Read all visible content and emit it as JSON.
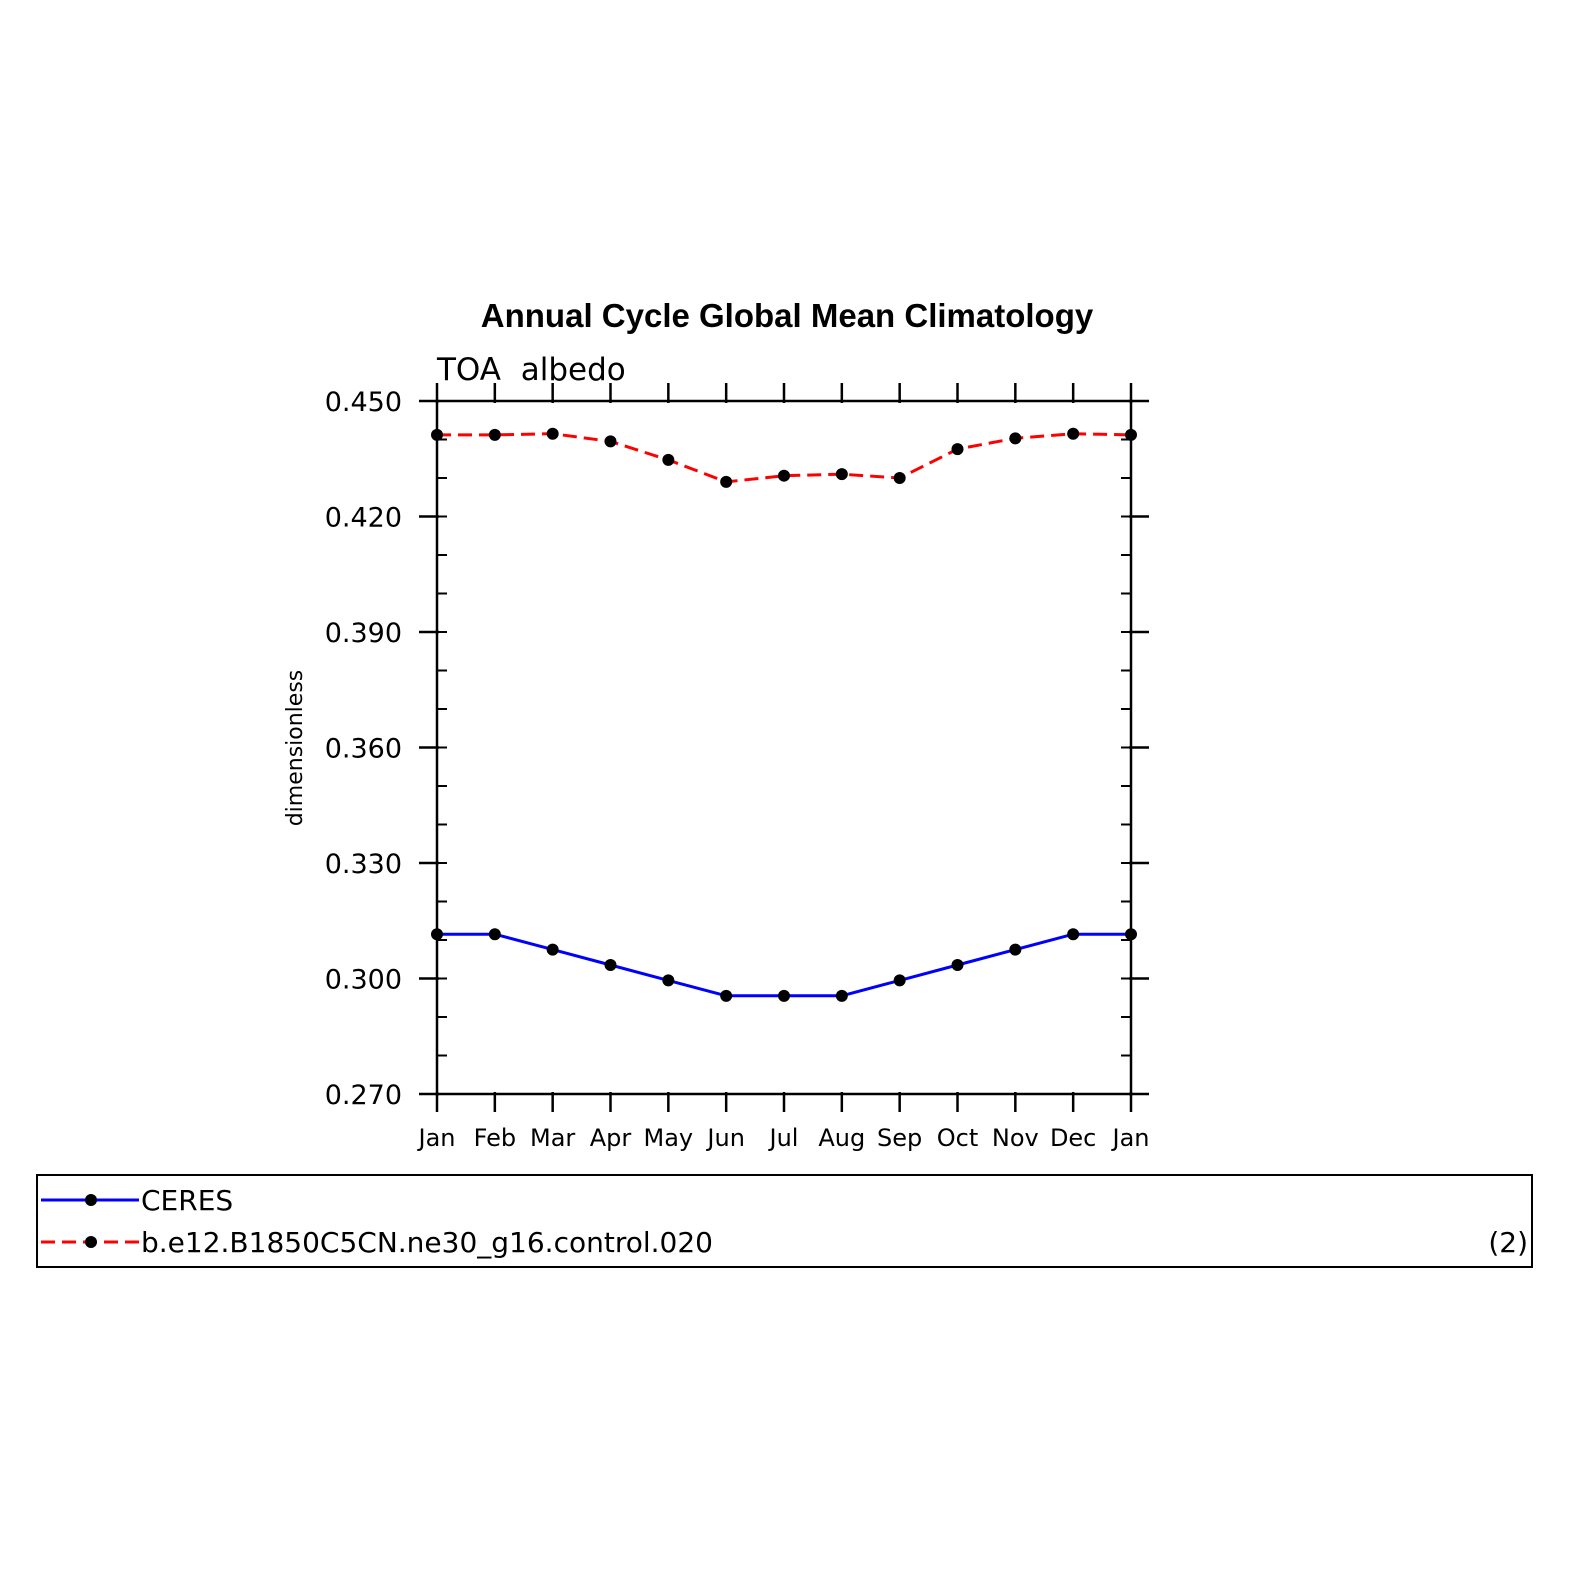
{
  "chart_data": {
    "type": "line",
    "title": "Annual Cycle Global Mean Climatology",
    "subtitle": "TOA  albedo",
    "xlabel": "",
    "ylabel": "dimensionless",
    "categories": [
      "Jan",
      "Feb",
      "Mar",
      "Apr",
      "May",
      "Jun",
      "Jul",
      "Aug",
      "Sep",
      "Oct",
      "Nov",
      "Dec",
      "Jan"
    ],
    "ylim": [
      0.27,
      0.45
    ],
    "yticks": [
      "0.270",
      "0.300",
      "0.330",
      "0.360",
      "0.390",
      "0.420",
      "0.450"
    ],
    "grid": false,
    "legend_position": "bottom",
    "series": [
      {
        "name": "CERES",
        "color": "#0000ff",
        "style": "solid",
        "values": [
          0.3115,
          0.3115,
          0.3075,
          0.3035,
          0.2995,
          0.2955,
          0.2955,
          0.2955,
          0.2995,
          0.3035,
          0.3075,
          0.3115,
          0.3115
        ]
      },
      {
        "name": "b.e12.B1850C5CN.ne30_g16.control.020",
        "color": "#ff0000",
        "style": "dashed",
        "values": [
          0.4412,
          0.4412,
          0.4415,
          0.4395,
          0.4347,
          0.429,
          0.4306,
          0.431,
          0.43,
          0.4375,
          0.4403,
          0.4415,
          0.4412
        ]
      }
    ],
    "annotation": "(2)"
  }
}
